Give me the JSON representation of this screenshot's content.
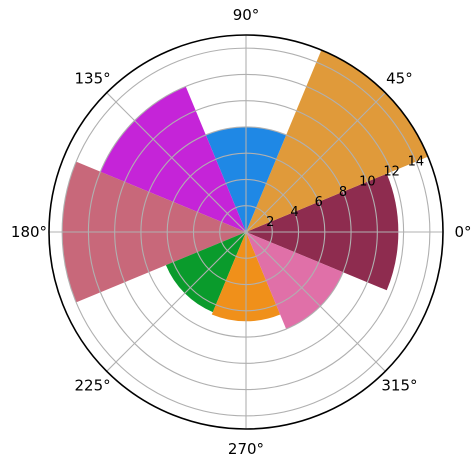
{
  "chart_data": {
    "type": "bar",
    "projection": "polar",
    "grid": true,
    "theta_tick_labels": [
      "0°",
      "45°",
      "90°",
      "135°",
      "180°",
      "225°",
      "270°",
      "315°"
    ],
    "theta_tick_values_deg": [
      0,
      45,
      90,
      135,
      180,
      225,
      270,
      315
    ],
    "r_tick_labels": [
      "2",
      "4",
      "6",
      "8",
      "10",
      "12",
      "14"
    ],
    "r_tick_values": [
      2,
      4,
      6,
      8,
      10,
      12,
      14
    ],
    "rlim": [
      0,
      15
    ],
    "r_label_angle_deg": 22.5,
    "bars": [
      {
        "theta_deg": 0,
        "width_deg": 45,
        "r": 11.6,
        "color": "#8e2c4f"
      },
      {
        "theta_deg": 45,
        "width_deg": 45,
        "r": 15.0,
        "color": "#e09a3a"
      },
      {
        "theta_deg": 90,
        "width_deg": 45,
        "r": 8.0,
        "color": "#1f88e5"
      },
      {
        "theta_deg": 135,
        "width_deg": 45,
        "r": 12.0,
        "color": "#c524d8"
      },
      {
        "theta_deg": 180,
        "width_deg": 45,
        "r": 14.0,
        "color": "#c8687a"
      },
      {
        "theta_deg": 225,
        "width_deg": 45,
        "r": 6.6,
        "color": "#0a9b2c"
      },
      {
        "theta_deg": 270,
        "width_deg": 45,
        "r": 6.8,
        "color": "#f0901a"
      },
      {
        "theta_deg": 315,
        "width_deg": 45,
        "r": 8.0,
        "color": "#e070a8"
      }
    ]
  }
}
